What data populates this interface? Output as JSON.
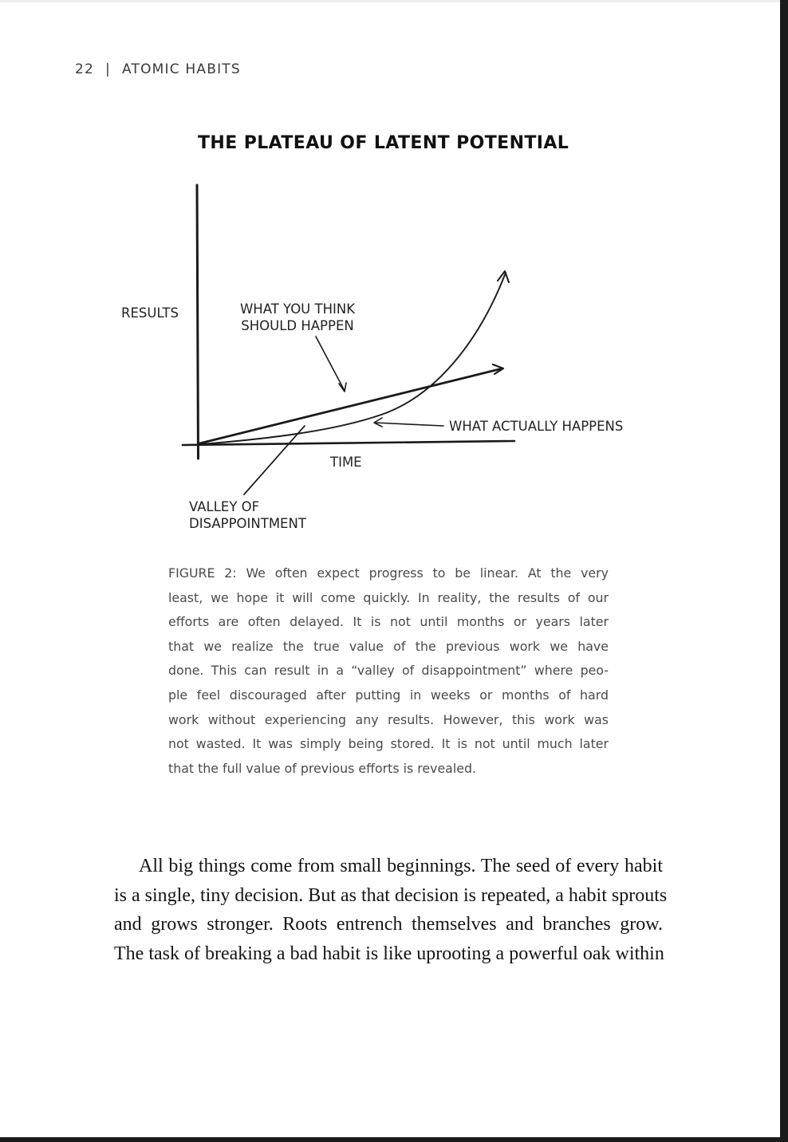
{
  "header": {
    "page_number": "22",
    "separator": "|",
    "book_title": "ATOMIC HABITS"
  },
  "figure": {
    "title": "THE PLATEAU OF LATENT POTENTIAL",
    "y_axis_label": "RESULTS",
    "x_axis_label": "TIME",
    "expectation_label_line1": "WHAT YOU THINK",
    "expectation_label_line2": "SHOULD HAPPEN",
    "actual_label": "WHAT ACTUALLY HAPPENS",
    "valley_label_line1": "VALLEY OF",
    "valley_label_line2": "DISAPPOINTMENT"
  },
  "caption": {
    "lines": [
      "FIGURE 2: We often expect progress to be linear. At the very",
      "least, we hope it will come quickly. In reality, the results of our",
      "efforts are often delayed. It is not until months or years later",
      "that we realize the true value of the previous work we have",
      "done. This can result in a “valley of disappointment” where peo-",
      "ple feel discouraged after putting in weeks or months of hard",
      "work without experiencing any results. However, this work was",
      "not wasted. It was simply being stored. It is not until much later",
      "that the full value of previous efforts is revealed."
    ]
  },
  "body": {
    "lines": [
      "All big things come from small beginnings. The seed of every habit",
      "is a single, tiny decision. But as that decision is repeated, a habit sprouts",
      "and grows stronger. Roots entrench themselves and branches grow.",
      "The task of breaking a bad habit is like uprooting a powerful oak within"
    ]
  }
}
